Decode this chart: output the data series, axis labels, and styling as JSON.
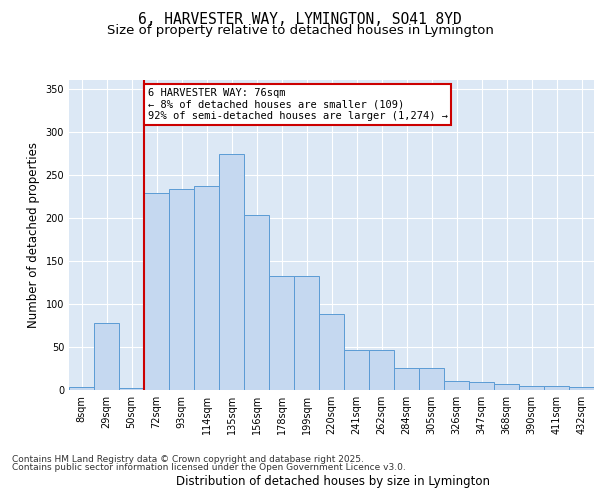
{
  "title_line1": "6, HARVESTER WAY, LYMINGTON, SO41 8YD",
  "title_line2": "Size of property relative to detached houses in Lymington",
  "xlabel": "Distribution of detached houses by size in Lymington",
  "ylabel": "Number of detached properties",
  "categories": [
    "8sqm",
    "29sqm",
    "50sqm",
    "72sqm",
    "93sqm",
    "114sqm",
    "135sqm",
    "156sqm",
    "178sqm",
    "199sqm",
    "220sqm",
    "241sqm",
    "262sqm",
    "284sqm",
    "305sqm",
    "326sqm",
    "347sqm",
    "368sqm",
    "390sqm",
    "411sqm",
    "432sqm"
  ],
  "bar_heights": [
    3,
    78,
    2,
    229,
    234,
    237,
    274,
    203,
    132,
    132,
    88,
    47,
    47,
    25,
    25,
    11,
    9,
    7,
    5,
    5,
    3
  ],
  "bar_color": "#c5d8f0",
  "bar_edge_color": "#5b9bd5",
  "property_line_color": "#cc0000",
  "annotation_text": "6 HARVESTER WAY: 76sqm\n← 8% of detached houses are smaller (109)\n92% of semi-detached houses are larger (1,274) →",
  "annotation_box_color": "#cc0000",
  "ylim": [
    0,
    360
  ],
  "yticks": [
    0,
    50,
    100,
    150,
    200,
    250,
    300,
    350
  ],
  "background_color": "#dce8f5",
  "footer_line1": "Contains HM Land Registry data © Crown copyright and database right 2025.",
  "footer_line2": "Contains public sector information licensed under the Open Government Licence v3.0.",
  "title_fontsize": 10.5,
  "subtitle_fontsize": 9.5,
  "axis_label_fontsize": 8.5,
  "tick_fontsize": 7,
  "footer_fontsize": 6.5,
  "annot_fontsize": 7.5
}
